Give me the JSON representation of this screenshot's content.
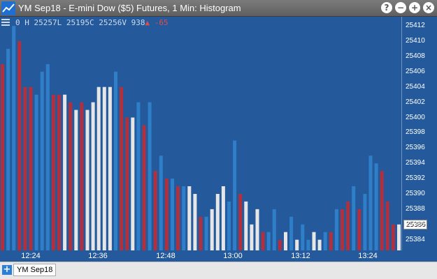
{
  "window": {
    "title": "YM Sep18 - E-mini Dow ($5) Futures, 1 Min: Histogram",
    "buttons": [
      "?",
      "−",
      "+",
      "×"
    ]
  },
  "info_bar": {
    "open": "0",
    "high": "H",
    "low": "25257L",
    "close": "25195C",
    "volume": "25256V",
    "last": "938",
    "arrow": "▲",
    "change": "-65"
  },
  "price_tag": "25386",
  "bottom_bar": {
    "add_label": "+",
    "symbol_tab": "YM Sep18"
  },
  "colors": {
    "background": "#245a9c",
    "bar_red": "#b0303e",
    "bar_blue": "#2f7fc8",
    "bar_light": "#e6e6e6"
  },
  "chart_data": {
    "type": "bar",
    "y_ticks": [
      25412,
      25410,
      25408,
      25406,
      25404,
      25402,
      25400,
      25398,
      25396,
      25394,
      25392,
      25390,
      25388,
      25386,
      25384
    ],
    "ylim": [
      25382.6,
      25413.2
    ],
    "x_ticks": [
      "12:24",
      "12:36",
      "12:48",
      "13:00",
      "13:12",
      "13:24"
    ],
    "bars": [
      {
        "v": 25407,
        "c": "red"
      },
      {
        "v": 25409,
        "c": "blue"
      },
      {
        "v": 25412,
        "c": "blue"
      },
      {
        "v": 25410,
        "c": "red"
      },
      {
        "v": 25404,
        "c": "red"
      },
      {
        "v": 25404,
        "c": "red"
      },
      {
        "v": 25403,
        "c": "blue"
      },
      {
        "v": 25406,
        "c": "blue"
      },
      {
        "v": 25407,
        "c": "blue"
      },
      {
        "v": 25403,
        "c": "red"
      },
      {
        "v": 25403,
        "c": "red"
      },
      {
        "v": 25403,
        "c": "light"
      },
      {
        "v": 25402,
        "c": "red"
      },
      {
        "v": 25401,
        "c": "light"
      },
      {
        "v": 25402,
        "c": "red"
      },
      {
        "v": 25401,
        "c": "light"
      },
      {
        "v": 25402,
        "c": "light"
      },
      {
        "v": 25404,
        "c": "light"
      },
      {
        "v": 25404,
        "c": "light"
      },
      {
        "v": 25404,
        "c": "light"
      },
      {
        "v": 25406,
        "c": "blue"
      },
      {
        "v": 25404,
        "c": "red"
      },
      {
        "v": 25400,
        "c": "red"
      },
      {
        "v": 25400,
        "c": "light"
      },
      {
        "v": 25402,
        "c": "blue"
      },
      {
        "v": 25399,
        "c": "red"
      },
      {
        "v": 25402,
        "c": "blue"
      },
      {
        "v": 25393,
        "c": "red"
      },
      {
        "v": 25395,
        "c": "blue"
      },
      {
        "v": 25392,
        "c": "red"
      },
      {
        "v": 25392,
        "c": "blue"
      },
      {
        "v": 25391,
        "c": "red"
      },
      {
        "v": 25391,
        "c": "blue"
      },
      {
        "v": 25391,
        "c": "light"
      },
      {
        "v": 25390,
        "c": "light"
      },
      {
        "v": 25387,
        "c": "red"
      },
      {
        "v": 25387,
        "c": "blue"
      },
      {
        "v": 25388,
        "c": "light"
      },
      {
        "v": 25390,
        "c": "light"
      },
      {
        "v": 25391,
        "c": "light"
      },
      {
        "v": 25389,
        "c": "blue"
      },
      {
        "v": 25397,
        "c": "blue"
      },
      {
        "v": 25390,
        "c": "red"
      },
      {
        "v": 25389,
        "c": "light"
      },
      {
        "v": 25386,
        "c": "light"
      },
      {
        "v": 25388,
        "c": "light"
      },
      {
        "v": 25385,
        "c": "red"
      },
      {
        "v": 25385,
        "c": "blue"
      },
      {
        "v": 25388,
        "c": "blue"
      },
      {
        "v": 25384,
        "c": "red"
      },
      {
        "v": 25385,
        "c": "light"
      },
      {
        "v": 25387,
        "c": "blue"
      },
      {
        "v": 25384,
        "c": "light"
      },
      {
        "v": 25386,
        "c": "blue"
      },
      {
        "v": 25384,
        "c": "blue"
      },
      {
        "v": 25385,
        "c": "light"
      },
      {
        "v": 25384,
        "c": "light"
      },
      {
        "v": 25385,
        "c": "blue"
      },
      {
        "v": 25385,
        "c": "red"
      },
      {
        "v": 25388,
        "c": "blue"
      },
      {
        "v": 25388,
        "c": "red"
      },
      {
        "v": 25389,
        "c": "red"
      },
      {
        "v": 25391,
        "c": "blue"
      },
      {
        "v": 25388,
        "c": "red"
      },
      {
        "v": 25390,
        "c": "blue"
      },
      {
        "v": 25395,
        "c": "blue"
      },
      {
        "v": 25394,
        "c": "blue"
      },
      {
        "v": 25393,
        "c": "red"
      },
      {
        "v": 25389,
        "c": "red"
      },
      {
        "v": 25386,
        "c": "red"
      },
      {
        "v": 25386,
        "c": "light"
      }
    ]
  }
}
